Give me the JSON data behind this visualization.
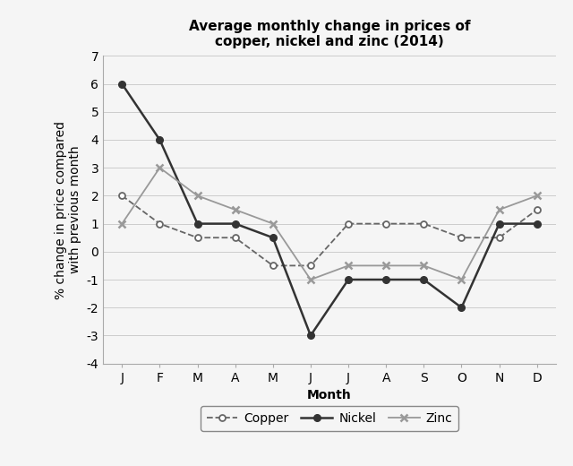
{
  "title": "Average monthly change in prices of\ncopper, nickel and zinc (2014)",
  "xlabel": "Month",
  "ylabel": "% change in price compared\nwith previous month",
  "months": [
    "J",
    "F",
    "M",
    "A",
    "M",
    "J",
    "J",
    "A",
    "S",
    "O",
    "N",
    "D"
  ],
  "copper": [
    2,
    1,
    0.5,
    0.5,
    -0.5,
    -0.5,
    1,
    1,
    1,
    0.5,
    0.5,
    1.5
  ],
  "nickel": [
    6,
    4,
    1,
    1,
    0.5,
    -3,
    -1,
    -1,
    -1,
    -2,
    1,
    1
  ],
  "zinc": [
    1,
    3,
    2,
    1.5,
    1,
    -1,
    -0.5,
    -0.5,
    -0.5,
    -1,
    1.5,
    2
  ],
  "ylim": [
    -4,
    7
  ],
  "yticks": [
    -4,
    -3,
    -2,
    -1,
    0,
    1,
    2,
    3,
    4,
    5,
    6,
    7
  ],
  "copper_color": "#666666",
  "nickel_color": "#333333",
  "zinc_color": "#999999",
  "background_color": "#f5f5f5",
  "grid_color": "#cccccc",
  "title_fontsize": 11,
  "label_fontsize": 10,
  "tick_fontsize": 10,
  "legend_fontsize": 10
}
